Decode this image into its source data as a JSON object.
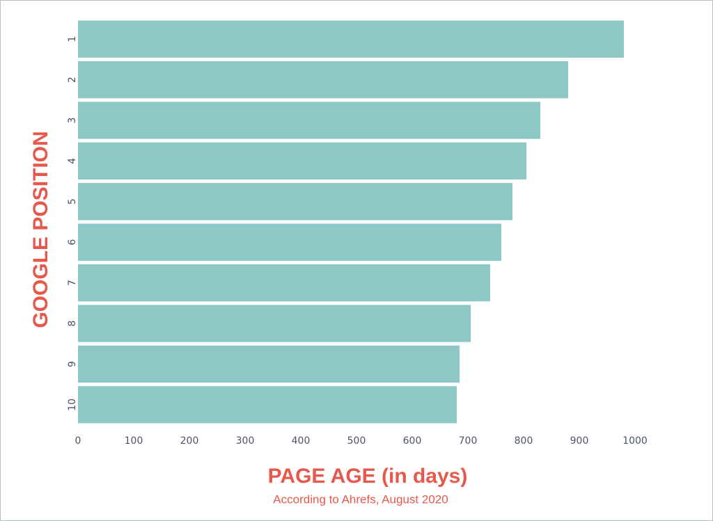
{
  "chart_data": {
    "type": "bar",
    "orientation": "horizontal",
    "x_label": "PAGE AGE (in days)",
    "y_label": "GOOGLE POSITION",
    "subtitle": "According to Ahrefs, August 2020",
    "categories": [
      "1",
      "2",
      "3",
      "4",
      "5",
      "6",
      "7",
      "8",
      "9",
      "10"
    ],
    "values": [
      980,
      880,
      830,
      805,
      780,
      760,
      740,
      705,
      685,
      680
    ],
    "color": "#8ec8c6",
    "xlim": [
      0,
      1000
    ],
    "xticks": [
      0,
      100,
      200,
      300,
      400,
      500,
      600,
      700,
      800,
      900,
      1000
    ],
    "grid": false
  }
}
